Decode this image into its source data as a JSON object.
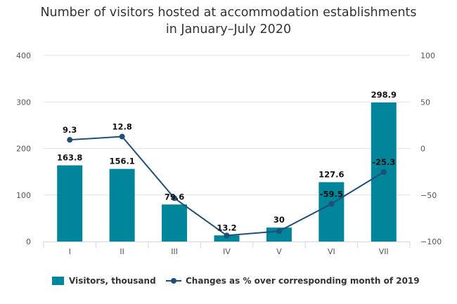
{
  "chart_data": {
    "type": "bar+line",
    "title_lines": [
      "Number of visitors hosted at accommodation establishments",
      "in January–July 2020"
    ],
    "categories": [
      "I",
      "II",
      "III",
      "IV",
      "V",
      "VI",
      "VII"
    ],
    "series": [
      {
        "name": "Visitors, thousand",
        "type": "bar",
        "axis": "left",
        "values": [
          163.8,
          156.1,
          79.6,
          13.2,
          30,
          127.6,
          298.9
        ],
        "labels": [
          "163.8",
          "156.1",
          "79.6",
          "13.2",
          "30",
          "127.6",
          "298.9"
        ],
        "color": "#00859b"
      },
      {
        "name": "Changes as % over corresponding month of 2019",
        "type": "line",
        "axis": "right",
        "values": [
          9.3,
          12.8,
          -53.4,
          -93.5,
          -88.9,
          -59.5,
          -25.3
        ],
        "labels": [
          "9.3",
          "12.8",
          "",
          "",
          "",
          "-59.5",
          "-25.3"
        ],
        "color": "#1f4e79"
      }
    ],
    "y_left": {
      "range": [
        0,
        400
      ],
      "ticks": [
        "0",
        "100",
        "200",
        "300",
        "400"
      ],
      "tick_values": [
        0,
        100,
        200,
        300,
        400
      ]
    },
    "y_right": {
      "range": [
        -100,
        100
      ],
      "ticks": [
        "−100",
        "−50",
        "0",
        "50",
        "100"
      ],
      "tick_values": [
        -100,
        -50,
        0,
        50,
        100
      ]
    },
    "grid": true,
    "legend_position": "bottom"
  }
}
